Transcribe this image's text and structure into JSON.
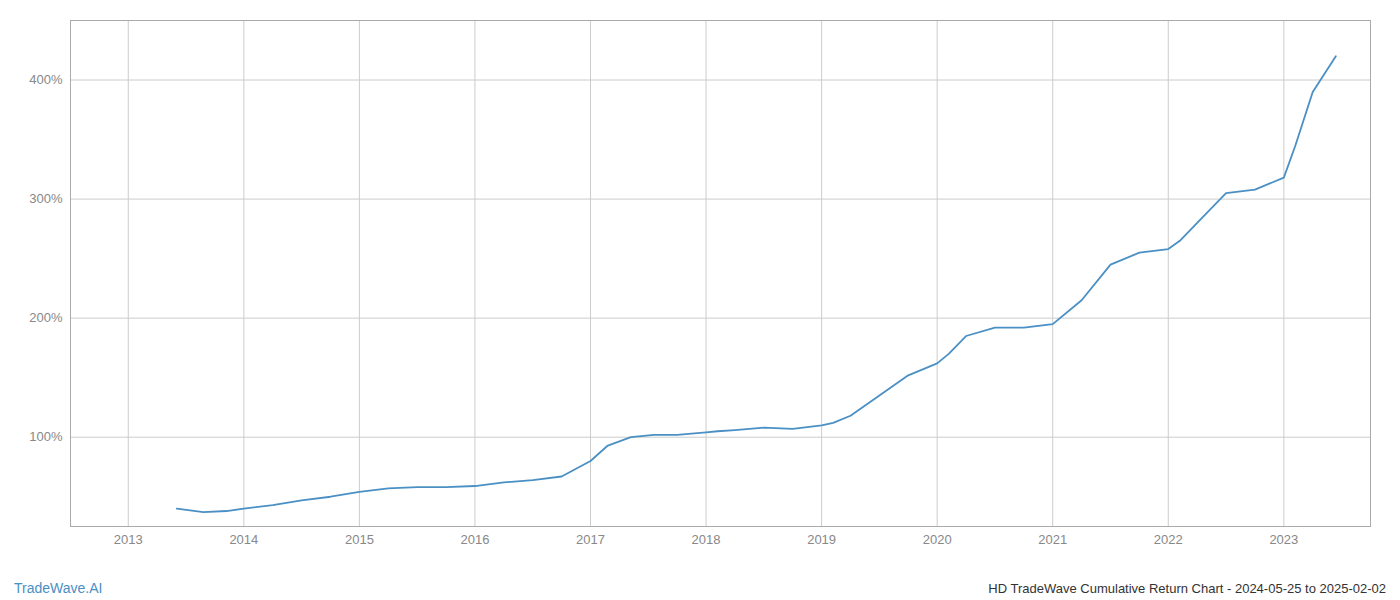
{
  "chart_data": {
    "type": "line",
    "title": "HD TradeWave Cumulative Return Chart - 2024-05-25 to 2025-02-02",
    "annotations": [
      {
        "text": "TradeWave.AI",
        "color": "#4a90c4"
      }
    ],
    "color": "#4a90c4",
    "x": [
      2013.42,
      2013.65,
      2013.85,
      2014.0,
      2014.25,
      2014.5,
      2014.75,
      2015.0,
      2015.25,
      2015.5,
      2015.75,
      2016.0,
      2016.25,
      2016.5,
      2016.75,
      2017.0,
      2017.15,
      2017.35,
      2017.55,
      2017.75,
      2018.0,
      2018.1,
      2018.25,
      2018.5,
      2018.75,
      2019.0,
      2019.1,
      2019.25,
      2019.5,
      2019.75,
      2020.0,
      2020.1,
      2020.25,
      2020.5,
      2020.75,
      2021.0,
      2021.25,
      2021.5,
      2021.75,
      2022.0,
      2022.1,
      2022.25,
      2022.5,
      2022.75,
      2023.0,
      2023.1,
      2023.25,
      2023.45
    ],
    "values": [
      40,
      37,
      38,
      40,
      43,
      47,
      50,
      54,
      57,
      58,
      58,
      59,
      62,
      64,
      67,
      80,
      93,
      100,
      102,
      102,
      104,
      105,
      106,
      108,
      107,
      110,
      112,
      118,
      135,
      152,
      162,
      170,
      185,
      192,
      192,
      195,
      215,
      245,
      255,
      258,
      265,
      280,
      305,
      308,
      318,
      345,
      390,
      420
    ],
    "xlim": [
      2012.5,
      2023.75
    ],
    "xticks": [
      2013,
      2014,
      2015,
      2016,
      2017,
      2018,
      2019,
      2020,
      2021,
      2022,
      2023
    ],
    "ylim": [
      25,
      450
    ],
    "yticks": [
      {
        "value": 100,
        "label": "100%"
      },
      {
        "value": 200,
        "label": "200%"
      },
      {
        "value": 300,
        "label": "300%"
      },
      {
        "value": 400,
        "label": "400%"
      }
    ],
    "grid": true
  }
}
